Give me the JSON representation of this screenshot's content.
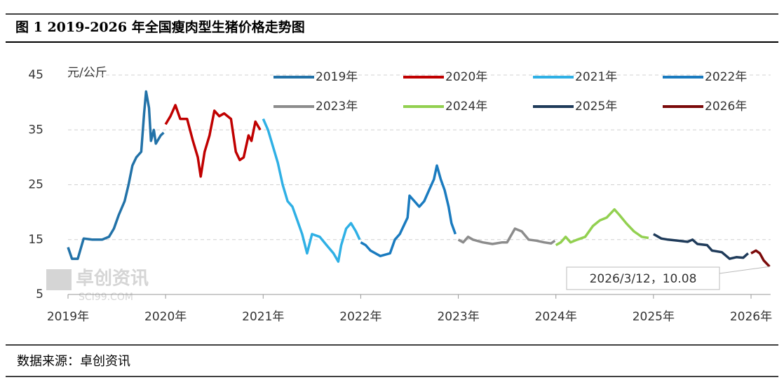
{
  "chart_data": {
    "type": "line",
    "title": "图 1 2019-2026 年全国瘦肉型生猪价格走势图",
    "y_label": "元/公斤",
    "source": "数据来源：卓创资讯",
    "watermark": [
      "卓创资讯",
      "SCI99.COM"
    ],
    "ylim": [
      5,
      45
    ],
    "yticks": [
      5,
      15,
      25,
      35,
      45
    ],
    "xlim": [
      2019,
      2026.2
    ],
    "xticks": [
      {
        "value": 2019,
        "label": "2019年"
      },
      {
        "value": 2020,
        "label": "2020年"
      },
      {
        "value": 2021,
        "label": "2021年"
      },
      {
        "value": 2022,
        "label": "2022年"
      },
      {
        "value": 2023,
        "label": "2023年"
      },
      {
        "value": 2024,
        "label": "2024年"
      },
      {
        "value": 2025,
        "label": "2025年"
      },
      {
        "value": 2026,
        "label": "2026年"
      }
    ],
    "grid": true,
    "legend": "top-right",
    "annotation": {
      "label": "2026/3/12，10.08",
      "x": 2026.19,
      "y": 10.08
    },
    "series": [
      {
        "name": "2019年",
        "color": "#2272a8",
        "x": [
          2019.0,
          2019.04,
          2019.1,
          2019.16,
          2019.25,
          2019.35,
          2019.42,
          2019.47,
          2019.52,
          2019.58,
          2019.62,
          2019.66,
          2019.7,
          2019.75,
          2019.78,
          2019.8,
          2019.83,
          2019.85,
          2019.88,
          2019.9,
          2019.95,
          2019.98
        ],
        "values": [
          13.6,
          11.5,
          11.5,
          15.2,
          15.0,
          15.0,
          15.5,
          17,
          19.5,
          22,
          25,
          28.5,
          30,
          31,
          38,
          42,
          39,
          33,
          35,
          32.5,
          34,
          34.5
        ]
      },
      {
        "name": "2020年",
        "color": "#c00000",
        "x": [
          2020.0,
          2020.05,
          2020.1,
          2020.15,
          2020.22,
          2020.28,
          2020.33,
          2020.36,
          2020.4,
          2020.45,
          2020.5,
          2020.55,
          2020.6,
          2020.67,
          2020.72,
          2020.76,
          2020.8,
          2020.85,
          2020.88,
          2020.92,
          2020.97
        ],
        "values": [
          36,
          37.5,
          39.5,
          37,
          37,
          33,
          30,
          26.5,
          31,
          34,
          38.5,
          37.5,
          38,
          37,
          31,
          29.5,
          30,
          34,
          33,
          36.5,
          35
        ]
      },
      {
        "name": "2021年",
        "color": "#2fb0e5",
        "x": [
          2021.0,
          2021.05,
          2021.1,
          2021.15,
          2021.2,
          2021.25,
          2021.3,
          2021.35,
          2021.4,
          2021.45,
          2021.5,
          2021.58,
          2021.65,
          2021.72,
          2021.77,
          2021.8,
          2021.85,
          2021.9,
          2021.95,
          2021.99
        ],
        "values": [
          37,
          35,
          32,
          29,
          25,
          22,
          21,
          18.5,
          16,
          12.5,
          16,
          15.5,
          14,
          12.5,
          11,
          14,
          17,
          18,
          16.5,
          15
        ]
      },
      {
        "name": "2022年",
        "color": "#1a7bbf",
        "x": [
          2022.0,
          2022.05,
          2022.1,
          2022.2,
          2022.3,
          2022.35,
          2022.4,
          2022.48,
          2022.5,
          2022.55,
          2022.6,
          2022.65,
          2022.7,
          2022.75,
          2022.78,
          2022.82,
          2022.86,
          2022.9,
          2022.93,
          2022.97
        ],
        "values": [
          14.5,
          14,
          13,
          12,
          12.5,
          15,
          16,
          19,
          23,
          22,
          21,
          22,
          24,
          26,
          28.5,
          26,
          24,
          21,
          18,
          16
        ]
      },
      {
        "name": "2023年",
        "color": "#8c8c8c",
        "x": [
          2023.0,
          2023.05,
          2023.1,
          2023.15,
          2023.25,
          2023.35,
          2023.45,
          2023.5,
          2023.58,
          2023.65,
          2023.72,
          2023.8,
          2023.88,
          2023.95,
          2023.99
        ],
        "values": [
          15,
          14.5,
          15.5,
          15,
          14.5,
          14.2,
          14.5,
          14.5,
          17,
          16.5,
          15,
          14.8,
          14.5,
          14.3,
          14.8
        ]
      },
      {
        "name": "2024年",
        "color": "#92d050",
        "x": [
          2024.0,
          2024.05,
          2024.1,
          2024.15,
          2024.22,
          2024.3,
          2024.38,
          2024.45,
          2024.52,
          2024.6,
          2024.65,
          2024.72,
          2024.8,
          2024.88,
          2024.95
        ],
        "values": [
          14,
          14.5,
          15.5,
          14.5,
          15,
          15.5,
          17.5,
          18.5,
          19,
          20.5,
          19.5,
          18,
          16.5,
          15.5,
          15.3
        ]
      },
      {
        "name": "2025年",
        "color": "#1f3b5a",
        "x": [
          2025.0,
          2025.08,
          2025.15,
          2025.25,
          2025.35,
          2025.4,
          2025.45,
          2025.55,
          2025.6,
          2025.7,
          2025.78,
          2025.85,
          2025.92,
          2025.97
        ],
        "values": [
          16,
          15.2,
          15,
          14.8,
          14.6,
          15,
          14.2,
          14,
          13,
          12.7,
          11.5,
          11.8,
          11.7,
          12.5
        ]
      },
      {
        "name": "2026年",
        "color": "#7b0a0a",
        "x": [
          2026.0,
          2026.05,
          2026.09,
          2026.13,
          2026.19
        ],
        "values": [
          12.5,
          13,
          12.5,
          11.2,
          10.08
        ]
      }
    ]
  }
}
